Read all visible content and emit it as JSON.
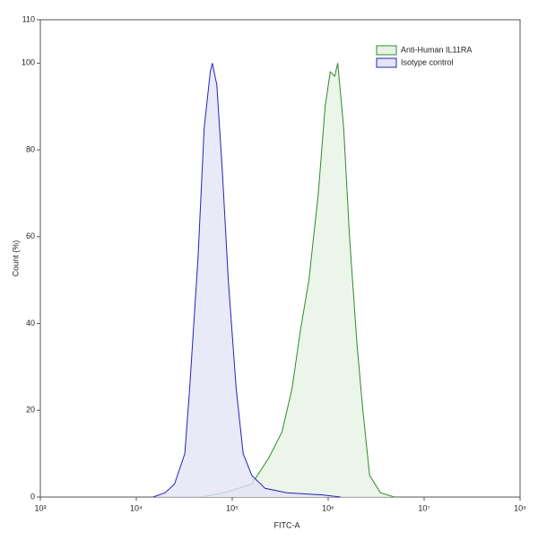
{
  "chart_data": {
    "type": "area",
    "x_label": "FITC-A",
    "y_label": "Count (%)",
    "log_x": true,
    "legend_position": "upper right",
    "xlim": [
      1000,
      100000000
    ],
    "xticks": [
      {
        "value": 1000,
        "label": "10³"
      },
      {
        "value": 10000,
        "label": "10⁴"
      },
      {
        "value": 100000,
        "label": "10⁵"
      },
      {
        "value": 1000000,
        "label": "10⁶"
      },
      {
        "value": 10000000,
        "label": "10⁷"
      },
      {
        "value": 100000000,
        "label": "10⁸"
      }
    ],
    "ylim": [
      0,
      110
    ],
    "yticks": [
      0,
      20,
      40,
      60,
      80,
      100,
      110
    ],
    "series": [
      {
        "name": "Anti-Human IL11RA",
        "color": "#2e8b2e",
        "fill": "#e6f3e3",
        "x": [
          48000,
          83000,
          160000,
          240000,
          330000,
          420000,
          510000,
          630000,
          790000,
          930000,
          1050000,
          1170000,
          1260000,
          1450000,
          1670000,
          2000000,
          2300000,
          2700000,
          3500000,
          4900000
        ],
        "values": [
          0,
          1,
          3,
          9,
          15,
          25,
          38,
          50,
          70,
          90,
          98,
          97,
          100,
          85,
          60,
          35,
          20,
          5,
          1,
          0
        ]
      },
      {
        "name": "Isotype control",
        "color": "#2424b8",
        "fill": "#e4e4f6",
        "x": [
          15000,
          20000,
          25000,
          32000,
          36000,
          44000,
          51000,
          59000,
          62000,
          69000,
          79000,
          91000,
          110000,
          130000,
          160000,
          220000,
          370000,
          870000,
          1350000
        ],
        "values": [
          0,
          1,
          3,
          10,
          25,
          55,
          85,
          98,
          100,
          95,
          75,
          50,
          25,
          10,
          5,
          2,
          1,
          0.5,
          0
        ]
      }
    ]
  }
}
